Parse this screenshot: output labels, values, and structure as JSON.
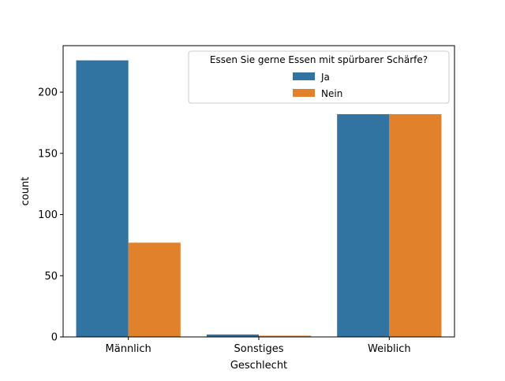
{
  "chart_data": {
    "type": "bar",
    "title": "",
    "xlabel": "Geschlecht",
    "ylabel": "count",
    "categories": [
      "Männlich",
      "Sonstiges",
      "Weiblich"
    ],
    "series": [
      {
        "name": "Ja",
        "color": "#3274a1",
        "values": [
          226,
          2,
          182
        ]
      },
      {
        "name": "Nein",
        "color": "#e1812c",
        "values": [
          77,
          1,
          182
        ]
      }
    ],
    "ylim": [
      0,
      238
    ],
    "yticks": [
      0,
      50,
      100,
      150,
      200
    ],
    "legend": {
      "title": "Essen Sie gerne Essen mit spürbarer Schärfe?",
      "placement": "upper-right"
    },
    "grid": false
  }
}
